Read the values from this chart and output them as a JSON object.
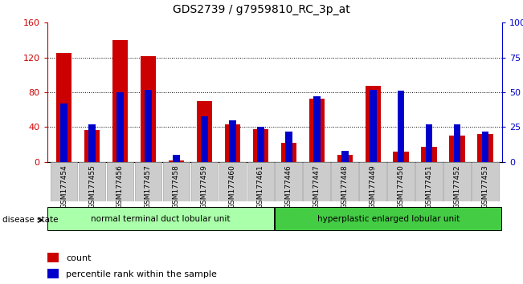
{
  "title": "GDS2739 / g7959810_RC_3p_at",
  "samples": [
    "GSM177454",
    "GSM177455",
    "GSM177456",
    "GSM177457",
    "GSM177458",
    "GSM177459",
    "GSM177460",
    "GSM177461",
    "GSM177446",
    "GSM177447",
    "GSM177448",
    "GSM177449",
    "GSM177450",
    "GSM177451",
    "GSM177452",
    "GSM177453"
  ],
  "counts": [
    125,
    37,
    140,
    122,
    2,
    70,
    43,
    38,
    22,
    73,
    8,
    87,
    12,
    17,
    30,
    32
  ],
  "percentiles": [
    42,
    27,
    50,
    52,
    5,
    33,
    30,
    25,
    22,
    47,
    8,
    52,
    51,
    27,
    27,
    22
  ],
  "group1_label": "normal terminal duct lobular unit",
  "group2_label": "hyperplastic enlarged lobular unit",
  "group1_count": 8,
  "group2_count": 8,
  "ylim_left": [
    0,
    160
  ],
  "ylim_right": [
    0,
    100
  ],
  "yticks_left": [
    0,
    40,
    80,
    120,
    160
  ],
  "yticks_right": [
    0,
    25,
    50,
    75,
    100
  ],
  "yticklabels_right": [
    "0",
    "25",
    "50",
    "75",
    "100%"
  ],
  "count_color": "#cc0000",
  "percentile_color": "#0000cc",
  "group1_color": "#aaffaa",
  "group2_color": "#44cc44",
  "legend_count_label": "count",
  "legend_percentile_label": "percentile rank within the sample"
}
